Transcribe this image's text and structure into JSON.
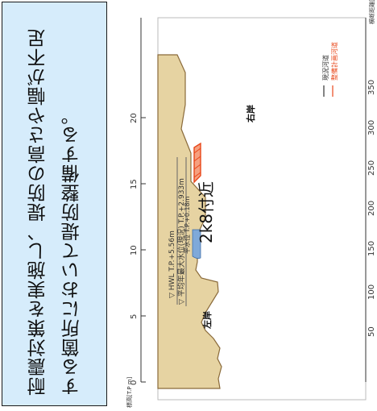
{
  "note": {
    "text": "耐震対策を実施し、堤防の高さや幅が不足する箇所において堤防整備する。"
  },
  "diagram": {
    "location_label": "2k8付近",
    "left_bank_label": "左岸",
    "right_bank_label": "右岸",
    "legend": {
      "current": "現況河道",
      "planned": "整備計画河道"
    },
    "water_levels": {
      "hwl": "▽ HWL T.P.+5.56m",
      "avg_annual_max": "▽ 平均年最大水位(現況) T.P.+2.933m",
      "avg_water": "平水位 T.P.+0.18m"
    },
    "axes": {
      "elevation_label": "標高[T.P m]",
      "elevation_ticks": [
        "0",
        "5",
        "10",
        "15",
        "20"
      ],
      "distance_label": "横断距離[m]",
      "distance_ticks": [
        "50",
        "100",
        "150",
        "200",
        "250",
        "300",
        "350"
      ]
    },
    "colors": {
      "ground": "#e6d3a2",
      "ground_line": "#8a6a3a",
      "water": "#7fa9d9",
      "planned": "#e8471a",
      "note_bg": "#d6ecfb"
    }
  }
}
